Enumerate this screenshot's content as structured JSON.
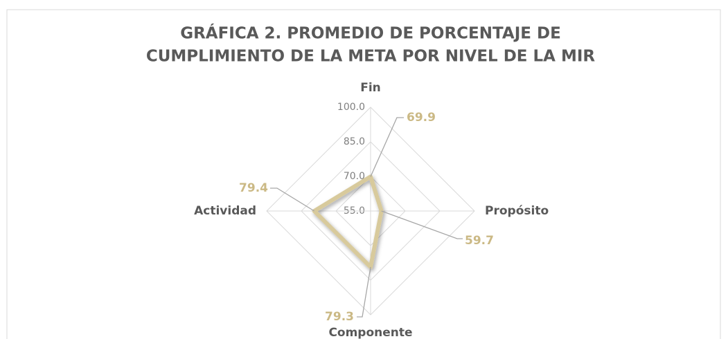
{
  "chart_data": {
    "type": "radar",
    "title": [
      "GRÁFICA 2. PROMEDIO DE PORCENTAJE DE",
      "CUMPLIMIENTO DE LA META POR NIVEL DE LA MIR"
    ],
    "categories": [
      "Fin",
      "Propósito",
      "Componente",
      "Actividad"
    ],
    "values": [
      69.9,
      59.7,
      79.3,
      79.4
    ],
    "color": "#d8ca9c",
    "label_color": "#cbb985",
    "rlim": [
      55,
      100
    ],
    "rticks": [
      {
        "value": 55,
        "label": "55.0"
      },
      {
        "value": 70,
        "label": "70.0"
      },
      {
        "value": 85,
        "label": "85.0"
      },
      {
        "value": 100,
        "label": "100.0"
      }
    ]
  }
}
